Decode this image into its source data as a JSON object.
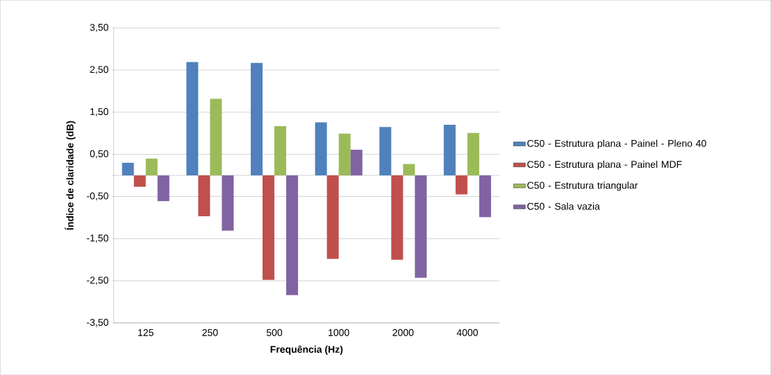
{
  "chart_data": {
    "type": "bar",
    "xlabel": "Frequência (Hz)",
    "ylabel": "Índice de claridade (dB)",
    "categories": [
      "125",
      "250",
      "500",
      "1000",
      "2000",
      "4000"
    ],
    "series": [
      {
        "name": "C50 - Estrutura plana - Painel - Pleno 40",
        "color": "#4f81bd",
        "values": [
          0.3,
          2.69,
          2.67,
          1.26,
          1.15,
          1.2
        ]
      },
      {
        "name": "C50 - Estrutura plana - Painel MDF",
        "color": "#c0504d",
        "values": [
          -0.27,
          -0.97,
          -2.48,
          -1.98,
          -2.0,
          -0.45
        ]
      },
      {
        "name": "C50 - Estrutura triangular",
        "color": "#9bbb59",
        "values": [
          0.4,
          1.82,
          1.17,
          0.99,
          0.27,
          1.01
        ]
      },
      {
        "name": "C50 - Sala vazia",
        "color": "#8064a2",
        "values": [
          -0.61,
          -1.31,
          -2.84,
          0.61,
          -2.43,
          -0.99
        ]
      }
    ],
    "ylim": [
      -3.5,
      3.5
    ],
    "yticks": [
      {
        "value": -3.5,
        "label": "-3,50"
      },
      {
        "value": -2.5,
        "label": "-2,50"
      },
      {
        "value": -1.5,
        "label": "-1,50"
      },
      {
        "value": -0.5,
        "label": "-0,50"
      },
      {
        "value": 0.5,
        "label": "0,50"
      },
      {
        "value": 1.5,
        "label": "1,50"
      },
      {
        "value": 2.5,
        "label": "2,50"
      },
      {
        "value": 3.5,
        "label": "3,50"
      }
    ],
    "grid": "y",
    "legend": "right"
  }
}
